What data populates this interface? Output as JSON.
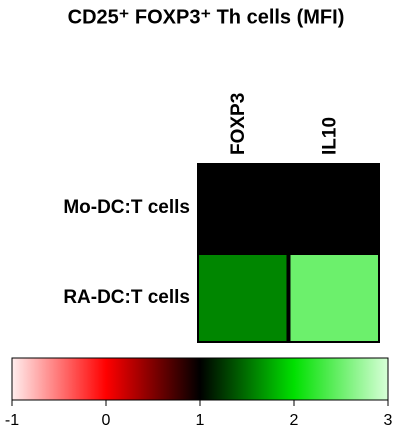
{
  "chart_data": {
    "type": "heatmap",
    "title": "CD25⁺ FOXP3⁺ Th cells (MFI)",
    "columns": [
      "FOXP3",
      "IL10"
    ],
    "rows": [
      "Mo-DC:T cells",
      "RA-DC:T cells"
    ],
    "values": [
      [
        1,
        1
      ],
      [
        1.6,
        2.5
      ]
    ],
    "zlim": [
      -1,
      3
    ],
    "zticks": [
      -1,
      0,
      1,
      2,
      3
    ],
    "colorscale": [
      {
        "value": -1,
        "color": "#ffeeee"
      },
      {
        "value": 0,
        "color": "#ff0000"
      },
      {
        "value": 1,
        "color": "#000000"
      },
      {
        "value": 2,
        "color": "#00e000"
      },
      {
        "value": 3,
        "color": "#d8ffd8"
      }
    ]
  }
}
